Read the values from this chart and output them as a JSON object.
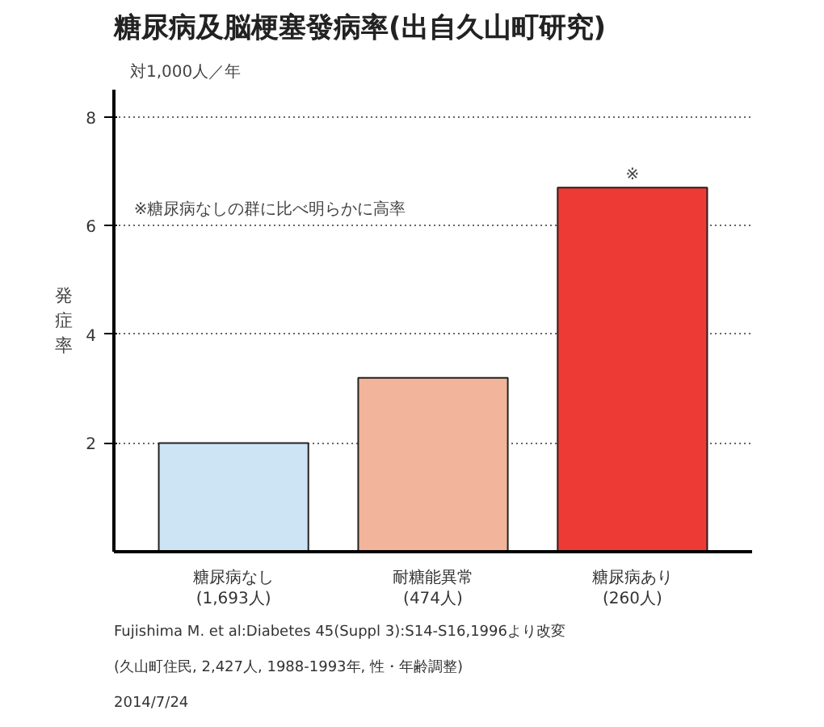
{
  "chart_data": {
    "type": "bar",
    "title": "糖尿病及脳梗塞發病率(出自久山町研究)",
    "ylabel": "発症率",
    "categories": [
      "糖尿病なし\n(1,693人)",
      "耐糖能異常\n(474人)",
      "糖尿病あり\n(260人)"
    ],
    "values": [
      2.0,
      3.2,
      6.7
    ],
    "colors": [
      "#cce4f4",
      "#f2b49a",
      "#ee3a35"
    ],
    "ylim": [
      0,
      8.5
    ],
    "yticks": [
      2,
      4,
      6,
      8
    ],
    "grid": "y",
    "annotations": [
      "対1,000人／年",
      "※糖尿病なしの群に比べ明らかに高率",
      {
        "text": "※",
        "x": "糖尿病あり\n(260人)",
        "y": 6.7
      },
      "Fujishima M. et al:Diabetes 45(Suppl 3):S14-S16,1996より改変",
      "(久山町住民, 2,427人, 1988-1993年, 性・年齢調整)",
      "2014/7/24"
    ]
  }
}
